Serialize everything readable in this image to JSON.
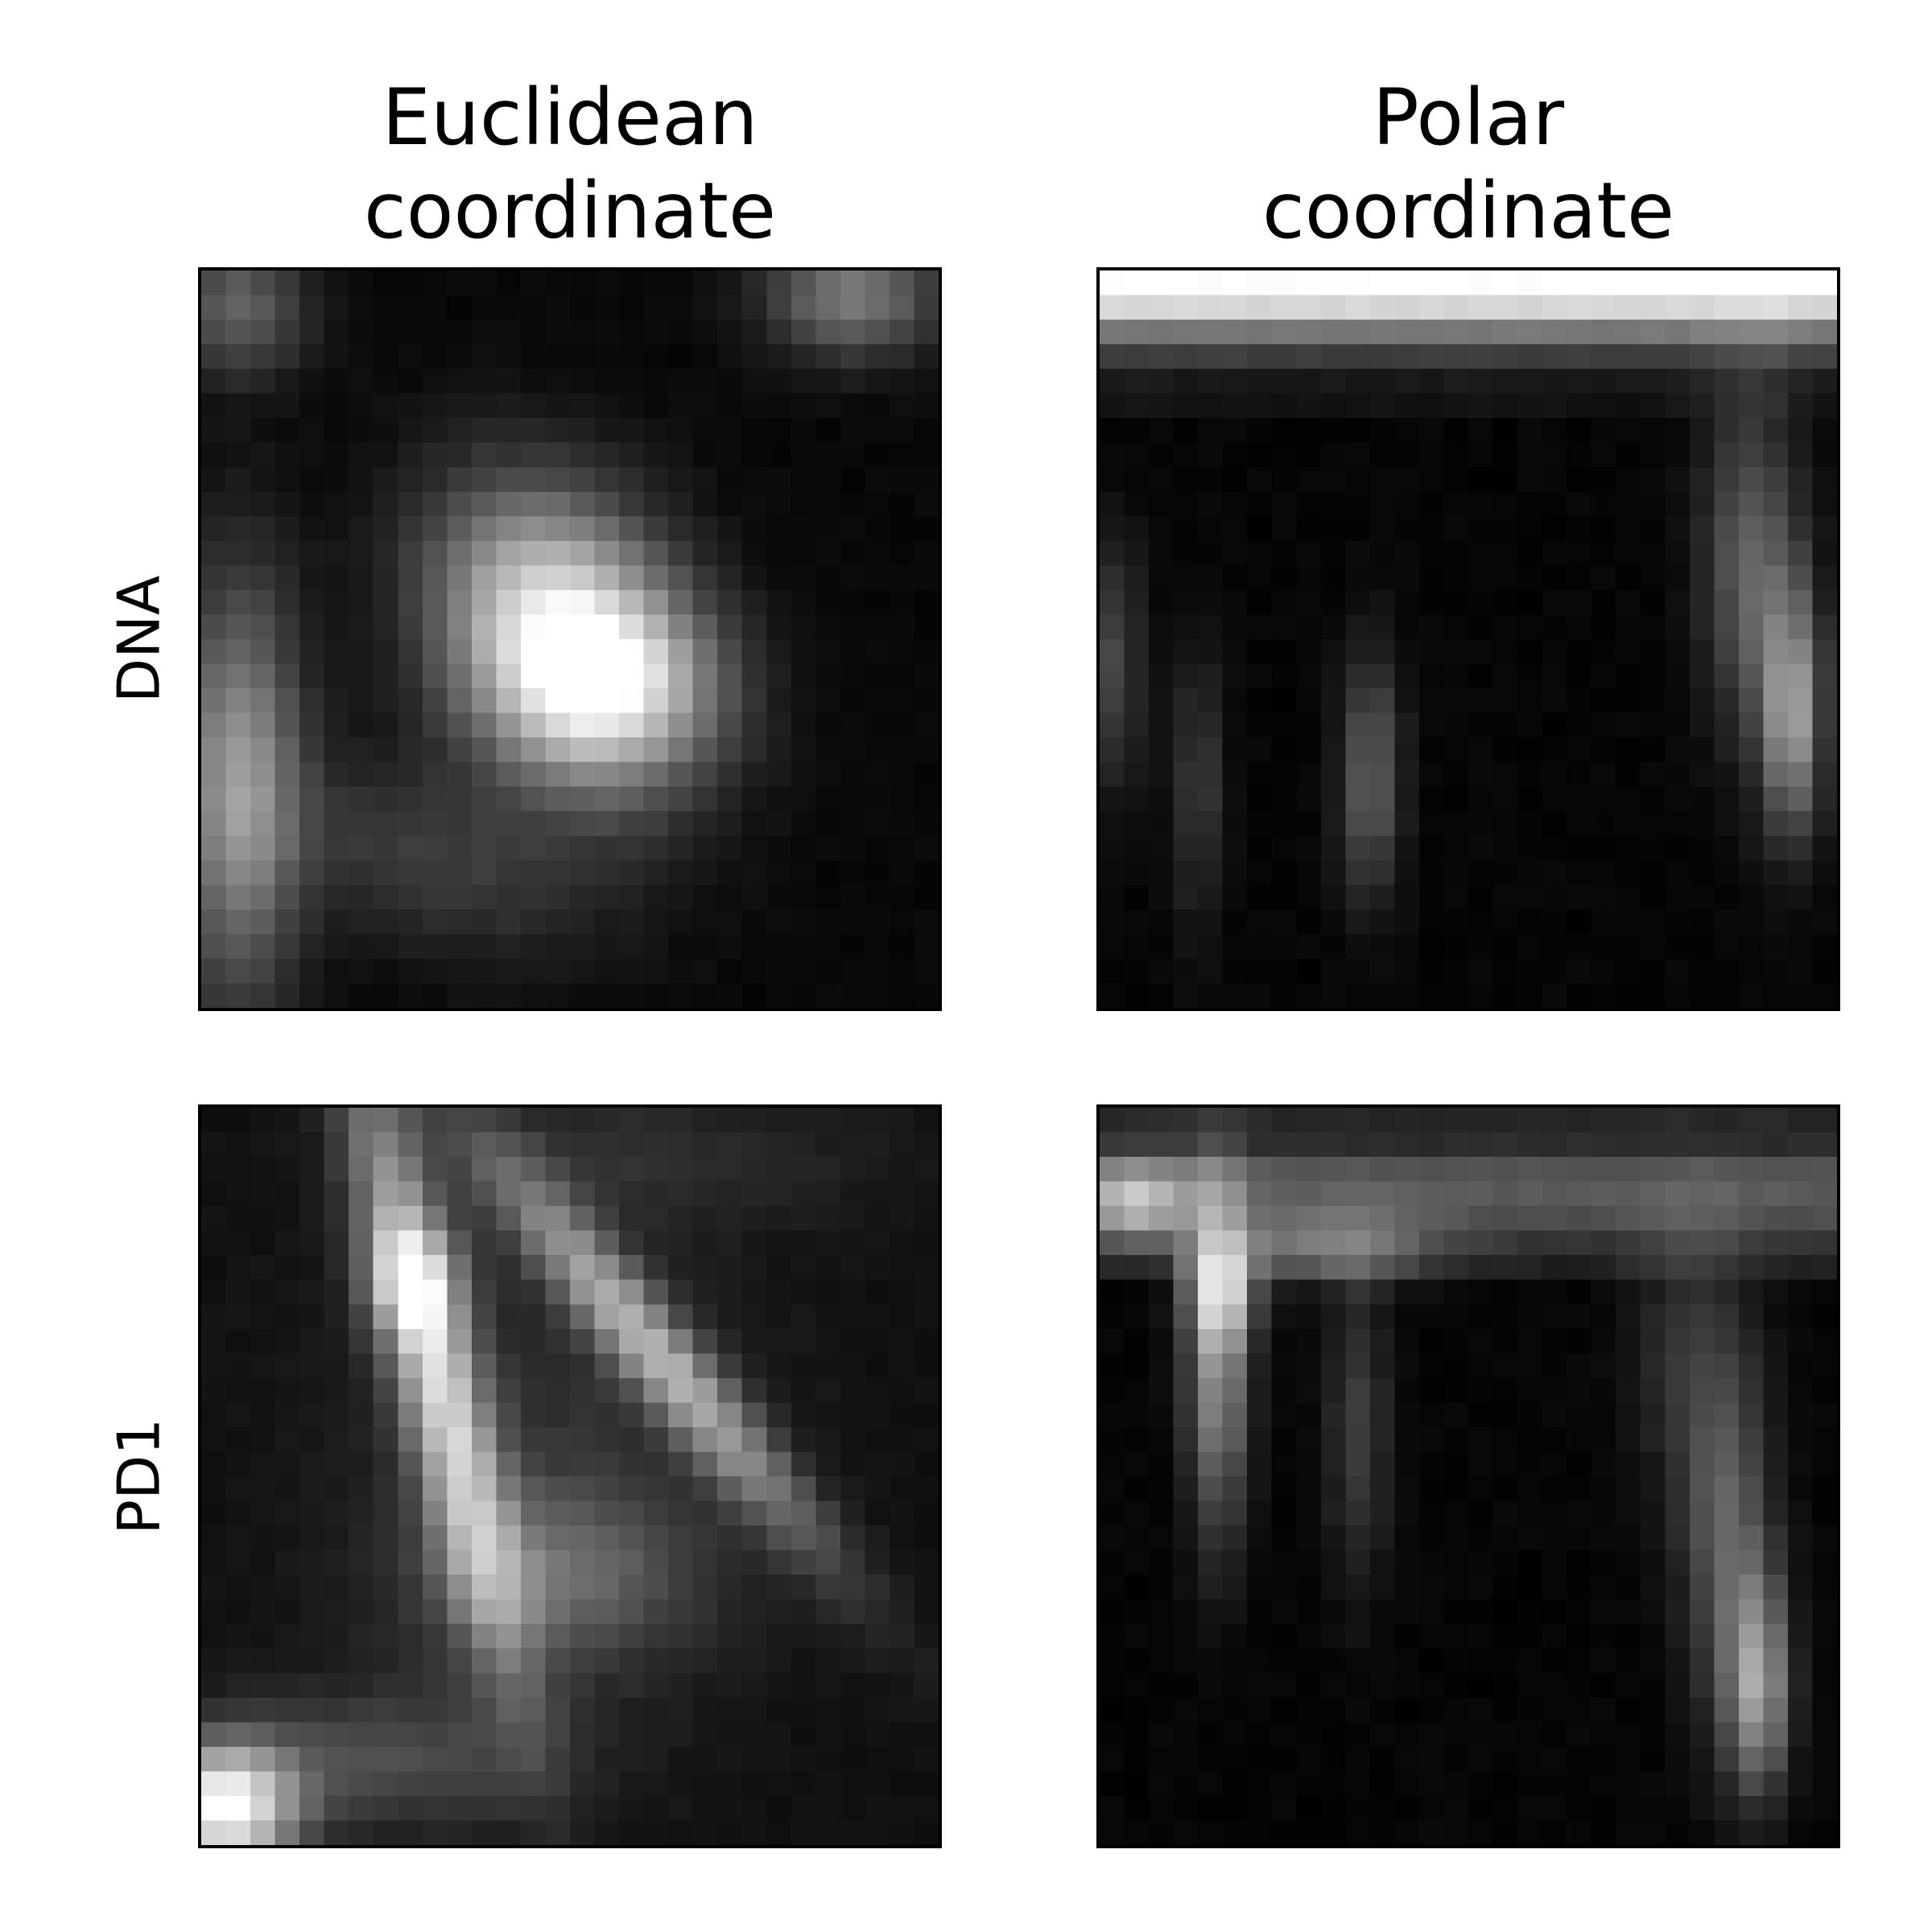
{
  "chart_data": {
    "type": "heatmap",
    "columns": [
      {
        "title": "Euclidean\ncoordinate"
      },
      {
        "title": "Polar\ncoordinate"
      }
    ],
    "rows": [
      {
        "label": "DNA"
      },
      {
        "label": "PD1"
      }
    ],
    "colormap": "gray",
    "grid_size": [
      30,
      30
    ],
    "axes_ticks": false,
    "panels": [
      {
        "row": "DNA",
        "column": "Euclidean coordinate",
        "background": 0.03,
        "blobs": [
          {
            "cx": 14.8,
            "cy": 15.2,
            "sx": 3.3,
            "sy": 4.5,
            "amp": 0.95,
            "angle": -30
          },
          {
            "cx": 17.2,
            "cy": 16.8,
            "sx": 3.0,
            "sy": 2.2,
            "amp": 0.3,
            "angle": 0
          },
          {
            "cx": 1.5,
            "cy": 21.0,
            "sx": 1.8,
            "sy": 6.0,
            "amp": 0.55,
            "angle": 0
          },
          {
            "cx": 9.0,
            "cy": 24.0,
            "sx": 5.0,
            "sy": 2.5,
            "amp": 0.2,
            "angle": 20
          },
          {
            "cx": 1.5,
            "cy": 1.5,
            "sx": 2.0,
            "sy": 2.0,
            "amp": 0.35,
            "angle": 0
          },
          {
            "cx": 26.5,
            "cy": 1.0,
            "sx": 2.5,
            "sy": 1.8,
            "amp": 0.45,
            "angle": 0
          }
        ]
      },
      {
        "row": "DNA",
        "column": "Polar coordinate",
        "background": 0.02,
        "row_profile": [
          {
            "row": 0,
            "value": 0.98
          },
          {
            "row": 1,
            "value": 0.82
          },
          {
            "row": 2,
            "value": 0.45
          },
          {
            "row": 3,
            "value": 0.22
          },
          {
            "row": 4,
            "value": 0.08
          },
          {
            "row": 5,
            "value": 0.05
          }
        ],
        "blobs": [
          {
            "cx": 26.5,
            "cy": 12.0,
            "sx": 1.4,
            "sy": 5.0,
            "amp": 0.35,
            "angle": 0
          },
          {
            "cx": 28.2,
            "cy": 18.0,
            "sx": 0.9,
            "sy": 3.5,
            "amp": 0.55,
            "angle": 0
          },
          {
            "cx": 11.0,
            "cy": 20.5,
            "sx": 0.9,
            "sy": 3.5,
            "amp": 0.35,
            "angle": 0
          },
          {
            "cx": 4.0,
            "cy": 21.0,
            "sx": 0.8,
            "sy": 4.0,
            "amp": 0.2,
            "angle": 0
          },
          {
            "cx": 0.6,
            "cy": 16.0,
            "sx": 0.8,
            "sy": 3.5,
            "amp": 0.25,
            "angle": 0
          }
        ]
      },
      {
        "row": "PD1",
        "column": "Euclidean coordinate",
        "background": 0.06,
        "blobs": [
          {
            "cx": 9.5,
            "cy": 10.5,
            "sx": 1.2,
            "sy": 8.5,
            "amp": 0.72,
            "angle": -14
          },
          {
            "cx": 8.5,
            "cy": 7.0,
            "sx": 1.3,
            "sy": 1.5,
            "amp": 0.4,
            "angle": 0
          },
          {
            "cx": 18.5,
            "cy": 10.0,
            "sx": 1.1,
            "sy": 7.5,
            "amp": 0.58,
            "angle": -40
          },
          {
            "cx": 14.5,
            "cy": 19.0,
            "sx": 4.0,
            "sy": 2.5,
            "amp": 0.28,
            "angle": 0
          },
          {
            "cx": 1.0,
            "cy": 28.5,
            "sx": 2.0,
            "sy": 1.8,
            "amp": 0.9,
            "angle": 0
          },
          {
            "cx": 7.0,
            "cy": 26.5,
            "sx": 5.0,
            "sy": 2.0,
            "amp": 0.22,
            "angle": 0
          },
          {
            "cx": 14.0,
            "cy": 14.0,
            "sx": 6.0,
            "sy": 8.0,
            "amp": 0.12,
            "angle": 0
          },
          {
            "cx": 18.0,
            "cy": 2.0,
            "sx": 7.0,
            "sy": 2.0,
            "amp": 0.1,
            "angle": 0
          }
        ]
      },
      {
        "row": "PD1",
        "column": "Polar coordinate",
        "background": 0.02,
        "row_profile": [
          {
            "row": 0,
            "value": 0.13
          },
          {
            "row": 1,
            "value": 0.15
          },
          {
            "row": 2,
            "value": 0.3
          },
          {
            "row": 3,
            "value": 0.33
          },
          {
            "row": 4,
            "value": 0.28
          },
          {
            "row": 5,
            "value": 0.18
          },
          {
            "row": 6,
            "value": 0.1
          }
        ],
        "blobs": [
          {
            "cx": 4.8,
            "cy": 10.0,
            "sx": 0.9,
            "sy": 5.0,
            "amp": 0.55,
            "angle": 0
          },
          {
            "cx": 5.0,
            "cy": 7.5,
            "sx": 1.0,
            "sy": 1.4,
            "amp": 0.45,
            "angle": 0
          },
          {
            "cx": 1.5,
            "cy": 3.8,
            "sx": 1.5,
            "sy": 1.2,
            "amp": 0.45,
            "angle": 0
          },
          {
            "cx": 9.5,
            "cy": 5.8,
            "sx": 3.0,
            "sy": 1.0,
            "amp": 0.3,
            "angle": 0
          },
          {
            "cx": 10.5,
            "cy": 13.0,
            "sx": 0.9,
            "sy": 4.5,
            "amp": 0.22,
            "angle": 0
          },
          {
            "cx": 25.5,
            "cy": 17.0,
            "sx": 1.3,
            "sy": 5.5,
            "amp": 0.35,
            "angle": 0
          },
          {
            "cx": 26.8,
            "cy": 23.5,
            "sx": 0.9,
            "sy": 3.0,
            "amp": 0.55,
            "angle": 0
          },
          {
            "cx": 23.5,
            "cy": 10.0,
            "sx": 1.5,
            "sy": 4.0,
            "amp": 0.15,
            "angle": 0
          }
        ]
      }
    ]
  }
}
